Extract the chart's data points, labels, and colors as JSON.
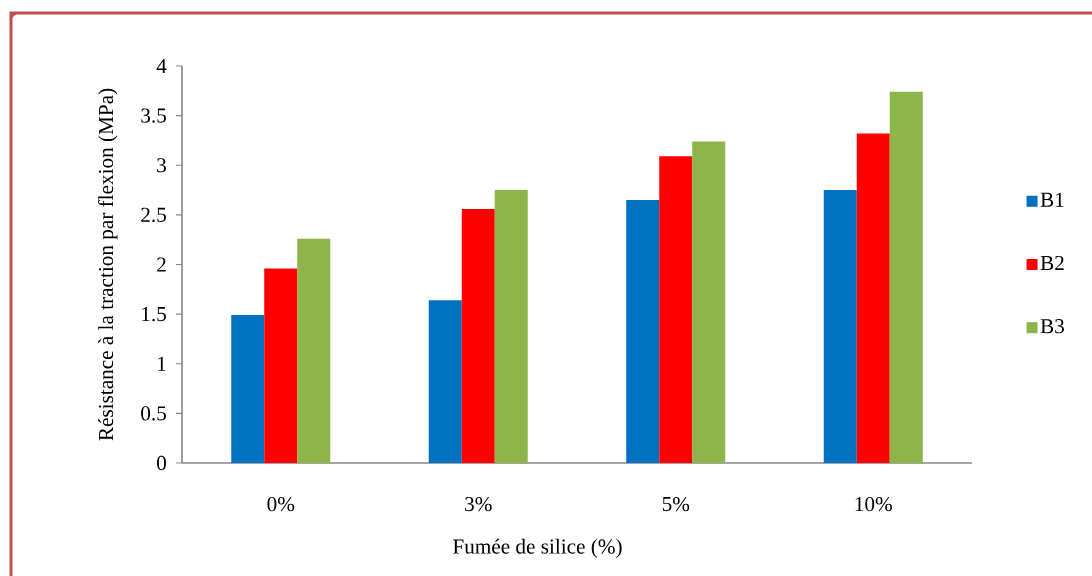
{
  "chart_data": {
    "type": "bar",
    "categories": [
      "0%",
      "3%",
      "5%",
      "10%"
    ],
    "series": [
      {
        "name": "B1",
        "color": "#0070c0",
        "values": [
          1.49,
          1.64,
          2.65,
          2.75
        ]
      },
      {
        "name": "B2",
        "color": "#ff0000",
        "values": [
          1.96,
          2.56,
          3.09,
          3.32
        ]
      },
      {
        "name": "B3",
        "color": "#8db54a",
        "values": [
          2.26,
          2.75,
          3.24,
          3.74
        ]
      }
    ],
    "xlabel": "Fumée de silice (%)",
    "ylabel": "Résistance à la traction par flexion (MPa)",
    "ylim": [
      0,
      4
    ],
    "yticks": [
      0,
      0.5,
      1,
      1.5,
      2,
      2.5,
      3,
      3.5,
      4
    ],
    "legend": "right"
  }
}
